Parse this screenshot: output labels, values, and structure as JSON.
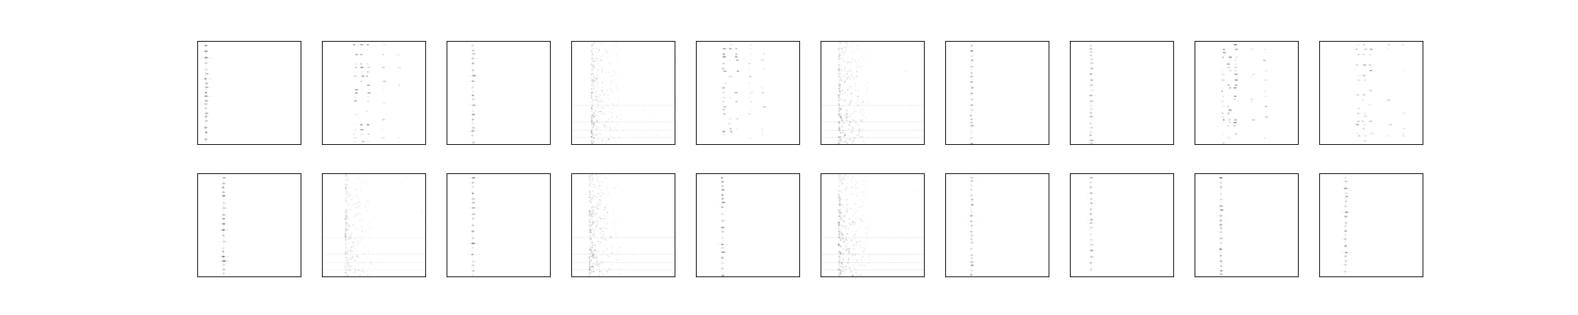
{
  "figure": {
    "background": "#ffffff",
    "frame_color": "#000000",
    "ink_color": "#000000",
    "grid": {
      "rows": 2,
      "cols": 10
    },
    "axes_ticks": false,
    "panels": [
      {
        "style": "single-stripe",
        "stripe_level": 0.08,
        "intensity": 0.7
      },
      {
        "style": "multi-stripe",
        "stripe_level": 0.3,
        "intensity": 0.6
      },
      {
        "style": "single-stripe",
        "stripe_level": 0.25,
        "intensity": 0.5
      },
      {
        "style": "noisy-band",
        "stripe_level": 0.22,
        "intensity": 0.6
      },
      {
        "style": "multi-stripe",
        "stripe_level": 0.25,
        "intensity": 0.6
      },
      {
        "style": "noisy-band",
        "stripe_level": 0.2,
        "intensity": 0.7
      },
      {
        "style": "single-stripe",
        "stripe_level": 0.25,
        "intensity": 0.55
      },
      {
        "style": "single-stripe",
        "stripe_level": 0.2,
        "intensity": 0.45
      },
      {
        "style": "multi-stripe",
        "stripe_level": 0.25,
        "intensity": 0.65
      },
      {
        "style": "multi-stripe",
        "stripe_level": 0.35,
        "intensity": 0.5
      },
      {
        "style": "single-stripe",
        "stripe_level": 0.25,
        "intensity": 0.7
      },
      {
        "style": "noisy-band",
        "stripe_level": 0.25,
        "intensity": 0.45
      },
      {
        "style": "single-stripe",
        "stripe_level": 0.25,
        "intensity": 0.55
      },
      {
        "style": "noisy-band",
        "stripe_level": 0.2,
        "intensity": 0.7
      },
      {
        "style": "single-stripe",
        "stripe_level": 0.25,
        "intensity": 0.55
      },
      {
        "style": "noisy-band",
        "stripe_level": 0.2,
        "intensity": 0.75
      },
      {
        "style": "single-stripe",
        "stripe_level": 0.25,
        "intensity": 0.6
      },
      {
        "style": "single-stripe",
        "stripe_level": 0.2,
        "intensity": 0.5
      },
      {
        "style": "single-stripe",
        "stripe_level": 0.25,
        "intensity": 0.65
      },
      {
        "style": "single-stripe",
        "stripe_level": 0.25,
        "intensity": 0.5
      }
    ]
  }
}
